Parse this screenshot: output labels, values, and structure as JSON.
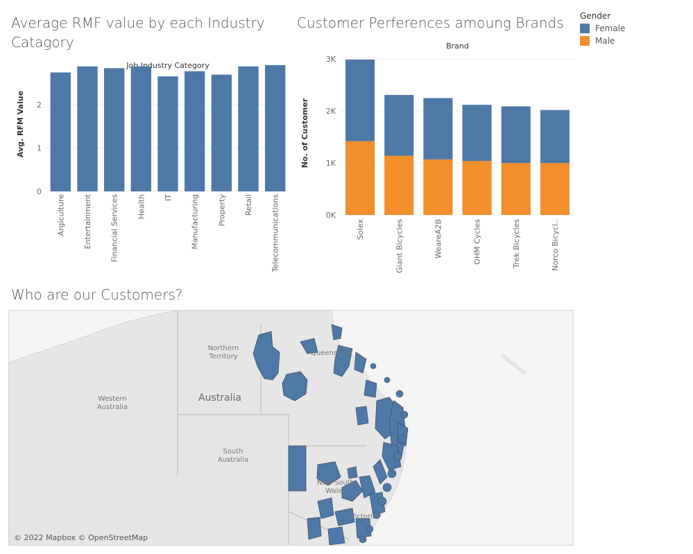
{
  "titles": {
    "chart1": "Average RMF value by each Industry Catagory",
    "chart2": "Customer Perferences amoung Brands",
    "map": "Who are our Customers?"
  },
  "legend": {
    "title": "Gender",
    "items": [
      {
        "label": "Female",
        "color": "#4e79a7"
      },
      {
        "label": "Male",
        "color": "#f28e2b"
      }
    ]
  },
  "chart_data": [
    {
      "type": "bar",
      "title": "Average RMF value by each Industry Catagory",
      "xlabel": "Job Industry Category",
      "ylabel": "Avg. RFM Value",
      "categories": [
        "Argiculture",
        "Entertainment",
        "Financial Services",
        "Health",
        "IT",
        "Manufacturing",
        "Property",
        "Retail",
        "Telecommunications"
      ],
      "values": [
        2.74,
        2.88,
        2.84,
        2.88,
        2.65,
        2.77,
        2.69,
        2.88,
        2.91
      ],
      "ylim": [
        0,
        3.1
      ],
      "yticks": [
        0,
        1,
        2
      ],
      "color": "#4e79a7"
    },
    {
      "type": "bar",
      "stacked": true,
      "title": "Customer Perferences amoung Brands",
      "xlabel": "Brand",
      "ylabel": "No. of Customer",
      "categories": [
        "Solex",
        "Giant Bicycles",
        "WeareA2B",
        "OHM Cycles",
        "Trek Bicycles",
        "Norco Bicycl.."
      ],
      "series": [
        {
          "name": "Male",
          "values": [
            1420,
            1140,
            1070,
            1040,
            1000,
            1000
          ],
          "color": "#f28e2b"
        },
        {
          "name": "Female",
          "values": [
            1570,
            1170,
            1180,
            1080,
            1090,
            1020
          ],
          "color": "#4e79a7"
        }
      ],
      "ylim": [
        0,
        3150
      ],
      "yticks": [
        0,
        1000,
        2000,
        3000
      ],
      "ytick_labels": [
        "0K",
        "1K",
        "2K",
        "3K"
      ]
    }
  ],
  "map": {
    "labels": [
      {
        "text": "Northern",
        "id": "nt1"
      },
      {
        "text": "Territory",
        "id": "nt2"
      },
      {
        "text": "Queensland",
        "id": "qld"
      },
      {
        "text": "Western",
        "id": "wa1"
      },
      {
        "text": "Australia",
        "id": "wa2"
      },
      {
        "text": "Australia",
        "id": "country"
      },
      {
        "text": "South",
        "id": "sa1"
      },
      {
        "text": "Australia",
        "id": "sa2"
      },
      {
        "text": "New South",
        "id": "nsw1"
      },
      {
        "text": "Wales",
        "id": "nsw2"
      },
      {
        "text": "Victoria",
        "id": "vic"
      }
    ],
    "attribution": "© 2022 Mapbox © OpenStreetMap",
    "region_color": "#4e79a7"
  }
}
